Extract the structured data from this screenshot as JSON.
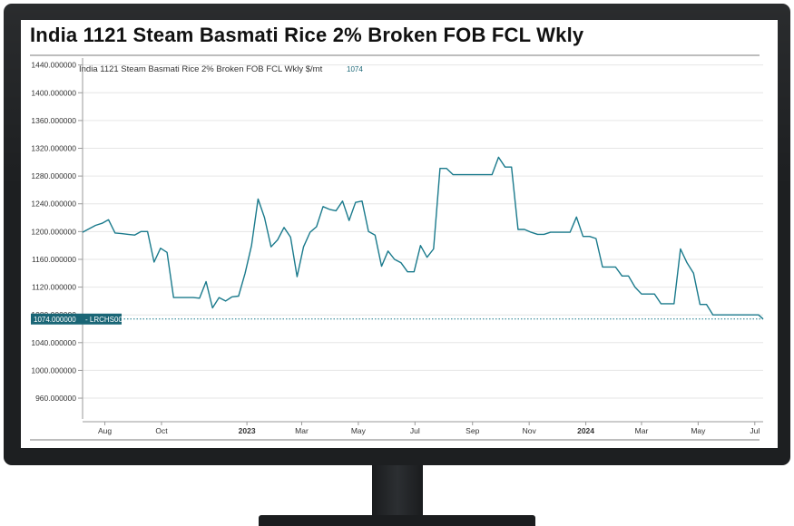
{
  "page_title": "India 1121 Steam Basmati Rice 2% Broken FOB FCL Wkly",
  "chart_data": {
    "type": "line",
    "title": "India 1121 Steam Basmati Rice 2% Broken FOB FCL Wkly",
    "series_label": "India 1121 Steam Basmati Rice 2% Broken FOB FCL Wkly $/mt",
    "last_value_label": "1074",
    "ylim": [
      930,
      1450
    ],
    "y_ticks": [
      960,
      1000,
      1040,
      1080,
      1120,
      1160,
      1200,
      1240,
      1280,
      1320,
      1360,
      1400,
      1440
    ],
    "y_tick_labels": [
      "960.000000",
      "1000.000000",
      "1040.000000",
      "1080.000000",
      "1120.000000",
      "1160.000000",
      "1200.000000",
      "1240.000000",
      "1280.000000",
      "1320.000000",
      "1360.000000",
      "1400.000000",
      "1440.000000"
    ],
    "x_range": [
      "2022-07-08",
      "2024-07-10"
    ],
    "x_ticks": [
      "2022-08-01",
      "2022-10-01",
      "2023-01-01",
      "2023-03-01",
      "2023-05-01",
      "2023-07-01",
      "2023-09-01",
      "2023-11-01",
      "2024-01-01",
      "2024-03-01",
      "2024-05-01",
      "2024-07-01"
    ],
    "x_tick_labels": [
      "Aug",
      "Oct",
      "2023",
      "Mar",
      "May",
      "Jul",
      "Sep",
      "Nov",
      "2024",
      "Mar",
      "May",
      "Jul"
    ],
    "x_tick_bold": [
      false,
      false,
      true,
      false,
      false,
      false,
      false,
      false,
      true,
      false,
      false,
      false
    ],
    "reference": {
      "value": 1074,
      "value_label": "1074.000000",
      "tag_label": "LRCHS00"
    },
    "grid": "horizontal",
    "line_color": "#1a7a8c",
    "series": [
      {
        "x": [
          "2022-07-08",
          "2022-07-15",
          "2022-07-22",
          "2022-07-29",
          "2022-08-05",
          "2022-08-12",
          "2022-08-19",
          "2022-08-26",
          "2022-09-02",
          "2022-09-09",
          "2022-09-16",
          "2022-09-23",
          "2022-09-30",
          "2022-10-07",
          "2022-10-14",
          "2022-10-21",
          "2022-10-28",
          "2022-11-04",
          "2022-11-11",
          "2022-11-18",
          "2022-11-25",
          "2022-12-02",
          "2022-12-09",
          "2022-12-16",
          "2022-12-23",
          "2022-12-30",
          "2023-01-06",
          "2023-01-13",
          "2023-01-20",
          "2023-01-27",
          "2023-02-03",
          "2023-02-10",
          "2023-02-17",
          "2023-02-24",
          "2023-03-03",
          "2023-03-10",
          "2023-03-17",
          "2023-03-24",
          "2023-03-31",
          "2023-04-07",
          "2023-04-14",
          "2023-04-21",
          "2023-04-28",
          "2023-05-05",
          "2023-05-12",
          "2023-05-19",
          "2023-05-26",
          "2023-06-02",
          "2023-06-09",
          "2023-06-16",
          "2023-06-23",
          "2023-06-30",
          "2023-07-07",
          "2023-07-14",
          "2023-07-21",
          "2023-07-28",
          "2023-08-04",
          "2023-08-11",
          "2023-08-18",
          "2023-08-25",
          "2023-09-01",
          "2023-09-08",
          "2023-09-15",
          "2023-09-22",
          "2023-09-29",
          "2023-10-06",
          "2023-10-13",
          "2023-10-20",
          "2023-10-27",
          "2023-11-03",
          "2023-11-10",
          "2023-11-17",
          "2023-11-24",
          "2023-12-01",
          "2023-12-08",
          "2023-12-15",
          "2023-12-22",
          "2023-12-29",
          "2024-01-05",
          "2024-01-12",
          "2024-01-19",
          "2024-01-26",
          "2024-02-02",
          "2024-02-09",
          "2024-02-16",
          "2024-02-23",
          "2024-03-01",
          "2024-03-08",
          "2024-03-15",
          "2024-03-22",
          "2024-03-29",
          "2024-04-05",
          "2024-04-12",
          "2024-04-19",
          "2024-04-26",
          "2024-05-03",
          "2024-05-10",
          "2024-05-17",
          "2024-05-24",
          "2024-05-31",
          "2024-06-07",
          "2024-06-14",
          "2024-06-21",
          "2024-06-28",
          "2024-07-05",
          "2024-07-10"
        ],
        "y": [
          1199,
          1204,
          1209,
          1212,
          1217,
          1198,
          1197,
          1196,
          1195,
          1200,
          1200,
          1156,
          1176,
          1170,
          1105,
          1105,
          1105,
          1105,
          1104,
          1128,
          1090,
          1105,
          1100,
          1106,
          1107,
          1140,
          1180,
          1247,
          1220,
          1178,
          1188,
          1206,
          1192,
          1135,
          1178,
          1199,
          1207,
          1236,
          1232,
          1230,
          1244,
          1216,
          1242,
          1244,
          1200,
          1195,
          1150,
          1172,
          1160,
          1155,
          1142,
          1142,
          1180,
          1163,
          1175,
          1291,
          1291,
          1282,
          1282,
          1282,
          1282,
          1282,
          1282,
          1282,
          1307,
          1293,
          1293,
          1203,
          1203,
          1199,
          1196,
          1196,
          1199,
          1199,
          1199,
          1199,
          1221,
          1193,
          1193,
          1190,
          1149,
          1149,
          1149,
          1136,
          1136,
          1120,
          1110,
          1110,
          1110,
          1096,
          1096,
          1096,
          1175,
          1155,
          1140,
          1095,
          1095,
          1080,
          1080,
          1080,
          1080,
          1080,
          1080,
          1080,
          1080,
          1074
        ]
      }
    ]
  }
}
